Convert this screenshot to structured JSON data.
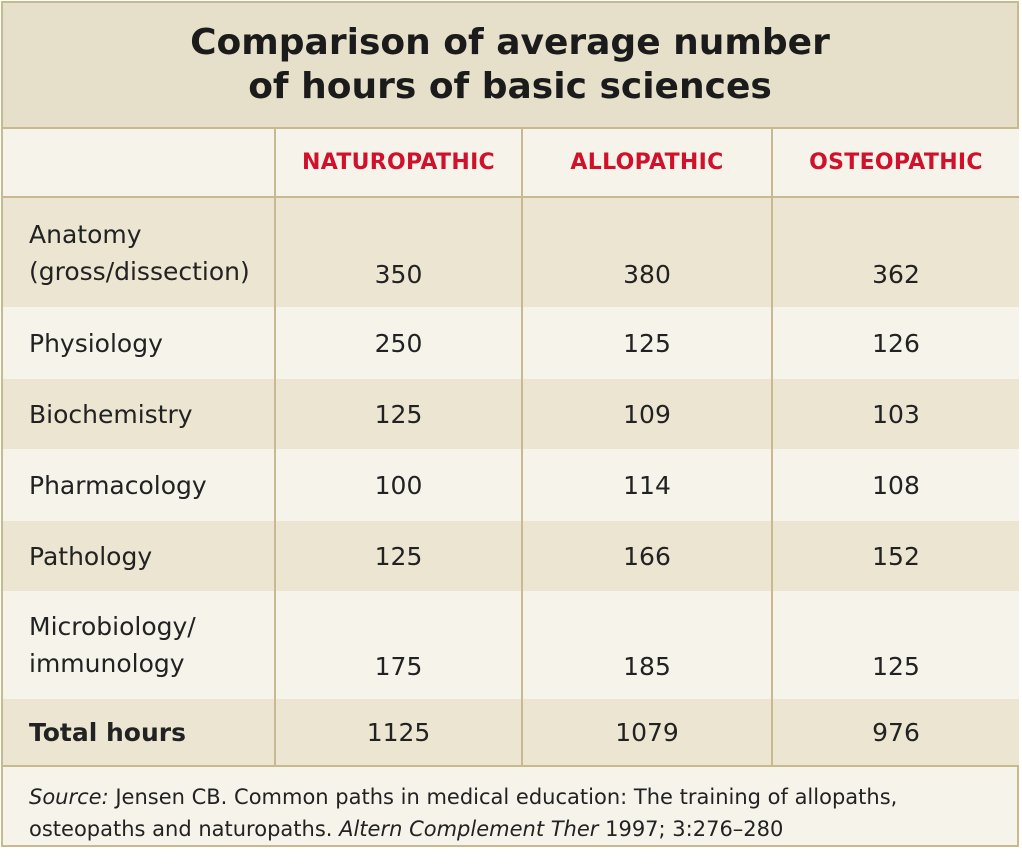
{
  "title": {
    "line1": "Comparison of average number",
    "line2": "of hours of basic sciences"
  },
  "table": {
    "columns": [
      "",
      "NATUROPATHIC",
      "ALLOPATHIC",
      "OSTEOPATHIC"
    ],
    "rows": [
      {
        "label_line1": "Anatomy",
        "label_line2": "(gross/dissection)",
        "values": [
          "350",
          "380",
          "362"
        ]
      },
      {
        "label_line1": "Physiology",
        "label_line2": "",
        "values": [
          "250",
          "125",
          "126"
        ]
      },
      {
        "label_line1": "Biochemistry",
        "label_line2": "",
        "values": [
          "125",
          "109",
          "103"
        ]
      },
      {
        "label_line1": "Pharmacology",
        "label_line2": "",
        "values": [
          "100",
          "114",
          "108"
        ]
      },
      {
        "label_line1": "Pathology",
        "label_line2": "",
        "values": [
          "125",
          "166",
          "152"
        ]
      },
      {
        "label_line1": "Microbiology/",
        "label_line2": "immunology",
        "values": [
          "175",
          "185",
          "125"
        ]
      }
    ],
    "total": {
      "label": "Total hours",
      "values": [
        "1125",
        "1079",
        "976"
      ]
    }
  },
  "source": {
    "prefix": "Source:",
    "text1": " Jensen CB. Common paths in medical education: The training of allopaths, osteopaths and naturopaths. ",
    "journal": "Altern Complement Ther",
    "text2": " 1997; 3:276–280"
  },
  "colors": {
    "header_red": "#d0112b",
    "border_tan": "#c9b98f",
    "title_bg": "#e6dfca",
    "shade_bg": "#ebe5d2",
    "light_bg": "#f6f3ea"
  }
}
